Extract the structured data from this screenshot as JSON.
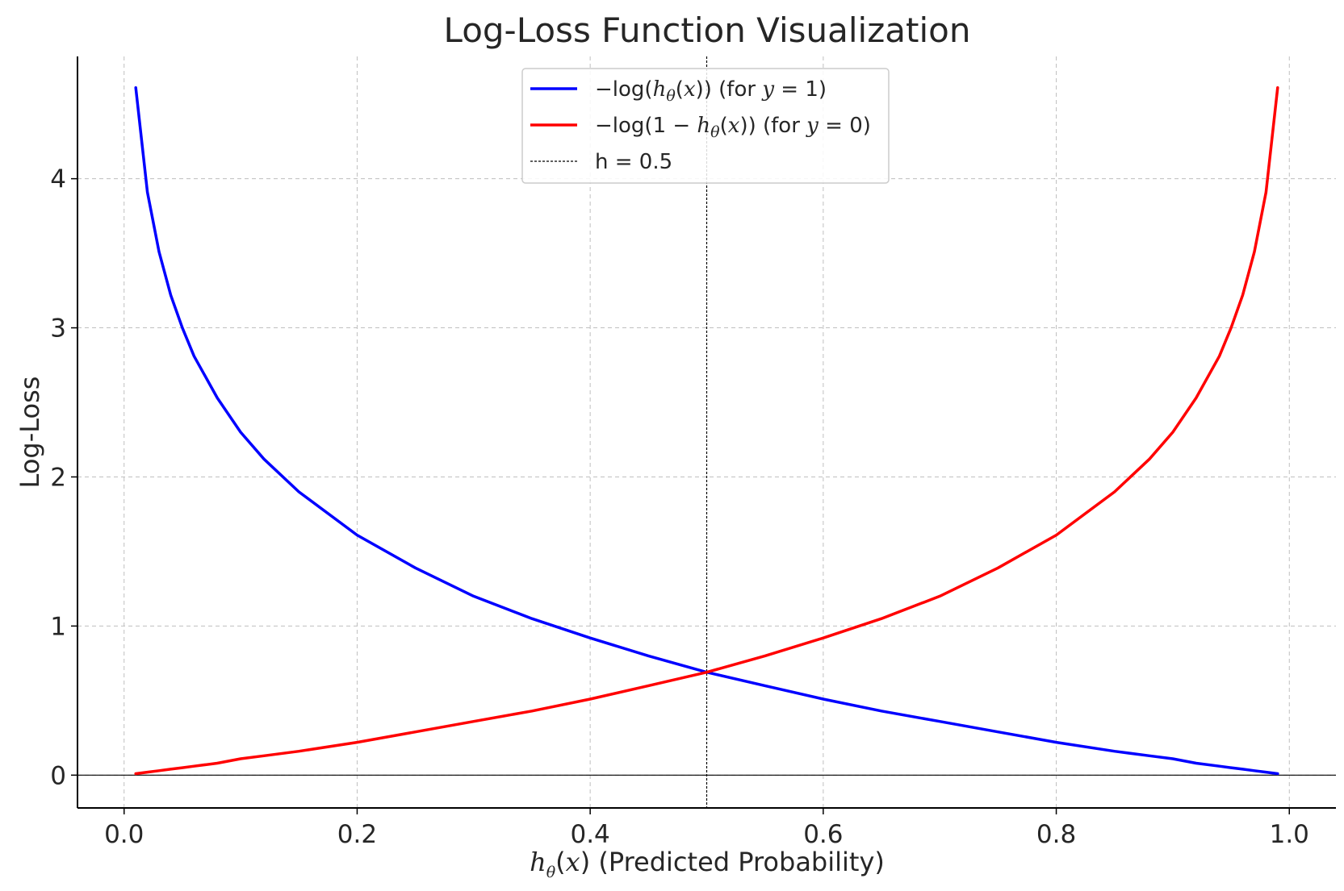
{
  "chart_data": {
    "type": "line",
    "title": "Log-Loss Function Visualization",
    "xlabel": {
      "h": "h",
      "theta": "θ",
      "x": "x",
      "rest": " (Predicted Probability)"
    },
    "ylabel": "Log-Loss",
    "xlim": [
      -0.04,
      1.04
    ],
    "ylim": [
      -0.22,
      4.82
    ],
    "xticks": [
      0.0,
      0.2,
      0.4,
      0.6,
      0.8,
      1.0
    ],
    "xtick_labels": [
      "0.0",
      "0.2",
      "0.4",
      "0.6",
      "0.8",
      "1.0"
    ],
    "yticks": [
      0,
      1,
      2,
      3,
      4
    ],
    "ytick_labels": [
      "0",
      "1",
      "2",
      "3",
      "4"
    ],
    "grid": true,
    "legend_position": "top-center",
    "x": [
      0.01,
      0.02,
      0.03,
      0.04,
      0.05,
      0.06,
      0.08,
      0.1,
      0.12,
      0.15,
      0.2,
      0.25,
      0.3,
      0.35,
      0.4,
      0.45,
      0.5,
      0.55,
      0.6,
      0.65,
      0.7,
      0.75,
      0.8,
      0.85,
      0.88,
      0.9,
      0.92,
      0.94,
      0.95,
      0.96,
      0.97,
      0.98,
      0.99
    ],
    "series": [
      {
        "name": {
          "a": "−log(",
          "h": "h",
          "theta": "θ",
          "b": "(",
          "x": "x",
          "c": ")) (for ",
          "y": "y",
          "d": " = 1)"
        },
        "color": "#0000ff",
        "values": [
          4.61,
          3.91,
          3.51,
          3.22,
          3.0,
          2.81,
          2.53,
          2.3,
          2.12,
          1.9,
          1.61,
          1.39,
          1.2,
          1.05,
          0.92,
          0.8,
          0.69,
          0.6,
          0.51,
          0.43,
          0.36,
          0.29,
          0.22,
          0.16,
          0.13,
          0.11,
          0.08,
          0.06,
          0.05,
          0.04,
          0.03,
          0.02,
          0.01
        ]
      },
      {
        "name": {
          "a": "−log(1 − ",
          "h": "h",
          "theta": "θ",
          "b": "(",
          "x": "x",
          "c": ")) (for ",
          "y": "y",
          "d": " = 0)"
        },
        "color": "#ff0000",
        "values": [
          0.01,
          0.02,
          0.03,
          0.04,
          0.05,
          0.06,
          0.08,
          0.11,
          0.13,
          0.16,
          0.22,
          0.29,
          0.36,
          0.43,
          0.51,
          0.6,
          0.69,
          0.8,
          0.92,
          1.05,
          1.2,
          1.39,
          1.61,
          1.9,
          2.12,
          2.3,
          2.53,
          2.81,
          3.0,
          3.22,
          3.51,
          3.91,
          4.61
        ]
      }
    ],
    "reference_lines": [
      {
        "orientation": "vertical",
        "x": 0.5,
        "style": "dashed",
        "color": "#000000",
        "name": "h = 0.5"
      },
      {
        "orientation": "horizontal",
        "y": 0,
        "style": "solid",
        "color": "#000000"
      }
    ]
  }
}
